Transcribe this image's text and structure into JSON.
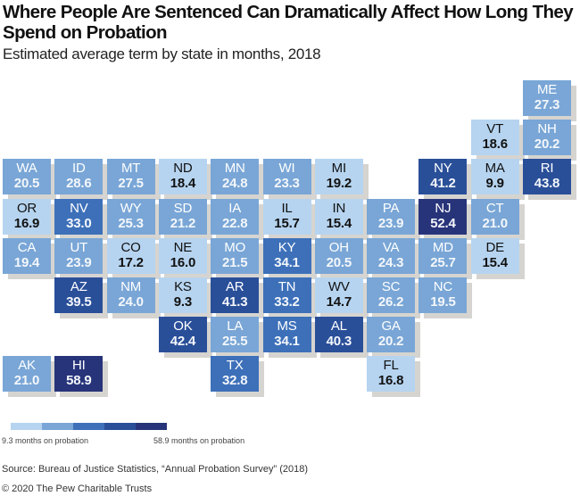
{
  "chart_data": {
    "type": "heatmap",
    "subtype": "tile-grid-map",
    "title": "Where People Are Sentenced Can Dramatically Affect How Long They Spend on Probation",
    "subtitle": "Estimated average term by state in months, 2018",
    "color_scale": {
      "min": 9.3,
      "max": 58.9,
      "min_label": "9.3 months on probation",
      "max_label": "58.9 months on probation",
      "colors": [
        "#b6d4f0",
        "#79a6d6",
        "#3d70b9",
        "#2a4f99",
        "#27347a"
      ]
    },
    "states": [
      {
        "abbr": "ME",
        "value": 27.3,
        "row": 0,
        "col": 10
      },
      {
        "abbr": "VT",
        "value": 18.6,
        "row": 1,
        "col": 9
      },
      {
        "abbr": "NH",
        "value": 20.2,
        "row": 1,
        "col": 10
      },
      {
        "abbr": "WA",
        "value": 20.5,
        "row": 2,
        "col": 0
      },
      {
        "abbr": "ID",
        "value": 28.6,
        "row": 2,
        "col": 1
      },
      {
        "abbr": "MT",
        "value": 27.5,
        "row": 2,
        "col": 2
      },
      {
        "abbr": "ND",
        "value": 18.4,
        "row": 2,
        "col": 3
      },
      {
        "abbr": "MN",
        "value": 24.8,
        "row": 2,
        "col": 4
      },
      {
        "abbr": "WI",
        "value": 23.3,
        "row": 2,
        "col": 5
      },
      {
        "abbr": "MI",
        "value": 19.2,
        "row": 2,
        "col": 6
      },
      {
        "abbr": "NY",
        "value": 41.2,
        "row": 2,
        "col": 8
      },
      {
        "abbr": "MA",
        "value": 9.9,
        "row": 2,
        "col": 9
      },
      {
        "abbr": "RI",
        "value": 43.8,
        "row": 2,
        "col": 10
      },
      {
        "abbr": "OR",
        "value": 16.9,
        "row": 3,
        "col": 0
      },
      {
        "abbr": "NV",
        "value": 33.0,
        "row": 3,
        "col": 1
      },
      {
        "abbr": "WY",
        "value": 25.3,
        "row": 3,
        "col": 2
      },
      {
        "abbr": "SD",
        "value": 21.2,
        "row": 3,
        "col": 3
      },
      {
        "abbr": "IA",
        "value": 22.8,
        "row": 3,
        "col": 4
      },
      {
        "abbr": "IL",
        "value": 15.7,
        "row": 3,
        "col": 5
      },
      {
        "abbr": "IN",
        "value": 15.4,
        "row": 3,
        "col": 6
      },
      {
        "abbr": "PA",
        "value": 23.9,
        "row": 3,
        "col": 7
      },
      {
        "abbr": "NJ",
        "value": 52.4,
        "row": 3,
        "col": 8
      },
      {
        "abbr": "CT",
        "value": 21.0,
        "row": 3,
        "col": 9
      },
      {
        "abbr": "CA",
        "value": 19.4,
        "row": 4,
        "col": 0
      },
      {
        "abbr": "UT",
        "value": 23.9,
        "row": 4,
        "col": 1
      },
      {
        "abbr": "CO",
        "value": 17.2,
        "row": 4,
        "col": 2
      },
      {
        "abbr": "NE",
        "value": 16.0,
        "row": 4,
        "col": 3
      },
      {
        "abbr": "MO",
        "value": 21.5,
        "row": 4,
        "col": 4
      },
      {
        "abbr": "KY",
        "value": 34.1,
        "row": 4,
        "col": 5
      },
      {
        "abbr": "OH",
        "value": 20.5,
        "row": 4,
        "col": 6
      },
      {
        "abbr": "VA",
        "value": 24.3,
        "row": 4,
        "col": 7
      },
      {
        "abbr": "MD",
        "value": 25.7,
        "row": 4,
        "col": 8
      },
      {
        "abbr": "DE",
        "value": 15.4,
        "row": 4,
        "col": 9
      },
      {
        "abbr": "AZ",
        "value": 39.5,
        "row": 5,
        "col": 1
      },
      {
        "abbr": "NM",
        "value": 24.0,
        "row": 5,
        "col": 2
      },
      {
        "abbr": "KS",
        "value": 9.3,
        "row": 5,
        "col": 3
      },
      {
        "abbr": "AR",
        "value": 41.3,
        "row": 5,
        "col": 4
      },
      {
        "abbr": "TN",
        "value": 33.2,
        "row": 5,
        "col": 5
      },
      {
        "abbr": "WV",
        "value": 14.7,
        "row": 5,
        "col": 6
      },
      {
        "abbr": "SC",
        "value": 26.2,
        "row": 5,
        "col": 7
      },
      {
        "abbr": "NC",
        "value": 19.5,
        "row": 5,
        "col": 8
      },
      {
        "abbr": "OK",
        "value": 42.4,
        "row": 6,
        "col": 3
      },
      {
        "abbr": "LA",
        "value": 25.5,
        "row": 6,
        "col": 4
      },
      {
        "abbr": "MS",
        "value": 34.1,
        "row": 6,
        "col": 5
      },
      {
        "abbr": "AL",
        "value": 40.3,
        "row": 6,
        "col": 6
      },
      {
        "abbr": "GA",
        "value": 20.2,
        "row": 6,
        "col": 7
      },
      {
        "abbr": "AK",
        "value": 21.0,
        "row": 7,
        "col": 0
      },
      {
        "abbr": "HI",
        "value": 58.9,
        "row": 7,
        "col": 1
      },
      {
        "abbr": "TX",
        "value": 32.8,
        "row": 7,
        "col": 4
      },
      {
        "abbr": "FL",
        "value": 16.8,
        "row": 7,
        "col": 7
      }
    ]
  },
  "footer": {
    "source": "Source: Bureau of Justice Statistics, “Annual Probation Survey” (2018)",
    "copyright": "© 2020 The Pew Charitable Trusts"
  }
}
